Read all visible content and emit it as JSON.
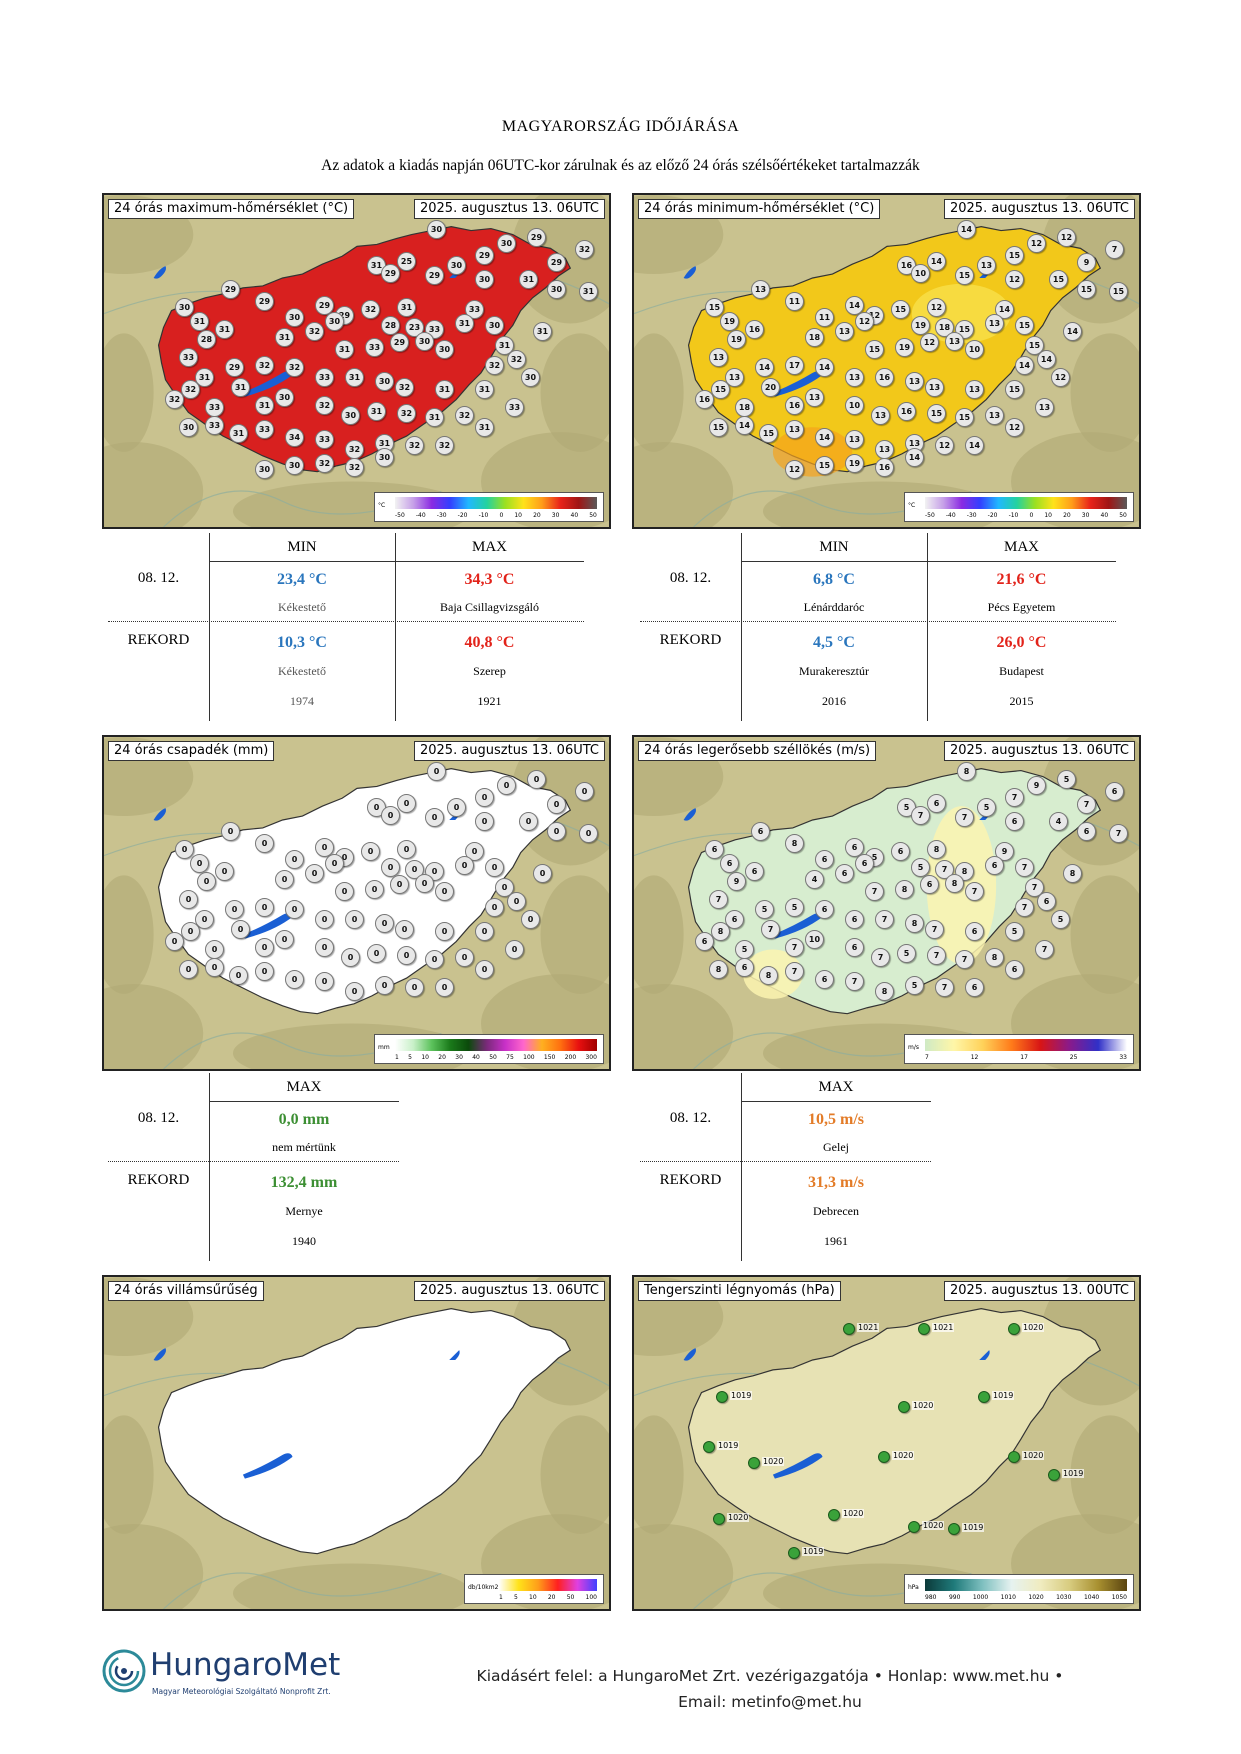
{
  "header": {
    "title": "MAGYARORSZÁG IDŐJÁRÁSA",
    "subtitle": "Az adatok a kiadás napján 06UTC-kor zárulnak és az előző 24 órás szélsőértékeket tartalmazzák"
  },
  "maps": [
    {
      "title": "24 órás maximum-hőmérséklet (°C)",
      "date": "2025. augusztus 13. 06UTC",
      "unit": "°C",
      "scale_ticks": [
        "-50",
        "-40",
        "-30",
        "-20",
        "-10",
        "0",
        "10",
        "20",
        "30",
        "40",
        "50"
      ]
    },
    {
      "title": "24 órás minimum-hőmérséklet (°C)",
      "date": "2025. augusztus 13. 06UTC",
      "unit": "°C",
      "scale_ticks": [
        "-50",
        "-40",
        "-30",
        "-20",
        "-10",
        "0",
        "10",
        "20",
        "30",
        "40",
        "50"
      ]
    },
    {
      "title": "24 órás csapadék (mm)",
      "date": "2025. augusztus 13. 06UTC",
      "unit": "mm",
      "scale_ticks": [
        "1",
        "5",
        "10",
        "20",
        "30",
        "40",
        "50",
        "75",
        "100",
        "150",
        "200",
        "300"
      ]
    },
    {
      "title": "24 órás legerősebb széllökés (m/s)",
      "date": "2025. augusztus 13. 06UTC",
      "unit": "m/s",
      "scale_ticks": [
        "7",
        "12",
        "17",
        "25",
        "33"
      ]
    },
    {
      "title": "24 órás villámsűrűség",
      "date": "2025. augusztus 13. 06UTC",
      "unit": "db/10km2",
      "scale_ticks": [
        "1",
        "5",
        "10",
        "20",
        "50",
        "100"
      ]
    },
    {
      "title": "Tengerszinti légnyomás (hPa)",
      "date": "2025. augusztus 13. 00UTC",
      "unit": "hPa",
      "scale_ticks": [
        "980",
        "990",
        "1000",
        "1010",
        "1020",
        "1030",
        "1040",
        "1050"
      ]
    }
  ],
  "station_values": {
    "tmax": [
      "30",
      "29",
      "30",
      "29",
      "29",
      "32",
      "31",
      "25",
      "30",
      "29",
      "29",
      "30",
      "31",
      "30",
      "31",
      "29",
      "29",
      "30",
      "29",
      "29",
      "32",
      "28",
      "31",
      "23",
      "33",
      "33",
      "31",
      "30",
      "31",
      "31",
      "30",
      "31",
      "28",
      "31",
      "31",
      "32",
      "30",
      "31",
      "33",
      "29",
      "30",
      "30",
      "32",
      "32",
      "30",
      "33",
      "31",
      "29",
      "32",
      "32",
      "33",
      "31",
      "30",
      "32",
      "31",
      "31",
      "33",
      "32",
      "32",
      "33",
      "31",
      "31",
      "30",
      "32",
      "30",
      "31",
      "32",
      "31",
      "32",
      "31",
      "30",
      "33",
      "31",
      "33",
      "34",
      "33",
      "32",
      "31",
      "32",
      "32",
      "30",
      "30",
      "32",
      "32",
      "30"
    ],
    "tmin": [
      "14",
      "15",
      "12",
      "12",
      "9",
      "7",
      "16",
      "14",
      "13",
      "15",
      "10",
      "12",
      "15",
      "15",
      "15",
      "13",
      "11",
      "11",
      "14",
      "12",
      "15",
      "19",
      "12",
      "18",
      "15",
      "14",
      "13",
      "15",
      "15",
      "14",
      "15",
      "19",
      "19",
      "16",
      "18",
      "13",
      "12",
      "15",
      "19",
      "12",
      "13",
      "10",
      "14",
      "14",
      "12",
      "13",
      "13",
      "14",
      "17",
      "14",
      "13",
      "16",
      "13",
      "13",
      "13",
      "15",
      "13",
      "16",
      "15",
      "18",
      "20",
      "16",
      "13",
      "10",
      "13",
      "16",
      "15",
      "15",
      "13",
      "12",
      "15",
      "14",
      "15",
      "13",
      "14",
      "13",
      "13",
      "13",
      "12",
      "14",
      "12",
      "15",
      "19",
      "16",
      "14"
    ],
    "rain": [
      "0",
      "0",
      "0",
      "0",
      "0",
      "0",
      "0",
      "0",
      "0",
      "0",
      "0",
      "0",
      "0",
      "0",
      "0",
      "0",
      "0",
      "0",
      "0",
      "0",
      "0",
      "0",
      "0",
      "0",
      "0",
      "0",
      "0",
      "0",
      "0",
      "0",
      "0",
      "0",
      "0",
      "0",
      "0",
      "0",
      "0",
      "0",
      "0",
      "0",
      "0",
      "0",
      "0",
      "0",
      "0",
      "0",
      "0",
      "0",
      "0",
      "0",
      "0",
      "0",
      "0",
      "0",
      "0",
      "0",
      "0",
      "0",
      "0",
      "0",
      "0",
      "0",
      "0",
      "0",
      "0",
      "0",
      "0",
      "0",
      "0",
      "0",
      "0",
      "0",
      "0",
      "0",
      "0",
      "0",
      "0",
      "0",
      "0",
      "0"
    ],
    "wind": [
      "8",
      "7",
      "9",
      "5",
      "7",
      "6",
      "5",
      "6",
      "5",
      "7",
      "7",
      "6",
      "4",
      "6",
      "7",
      "6",
      "8",
      "6",
      "6",
      "5",
      "6",
      "5",
      "8",
      "7",
      "8",
      "9",
      "6",
      "7",
      "7",
      "8",
      "6",
      "6",
      "9",
      "6",
      "4",
      "6",
      "6",
      "7",
      "8",
      "6",
      "8",
      "7",
      "7",
      "6",
      "5",
      "7",
      "6",
      "5",
      "5",
      "6",
      "6",
      "7",
      "8",
      "7",
      "6",
      "5",
      "7",
      "6",
      "8",
      "5",
      "7",
      "7",
      "10",
      "6",
      "7",
      "5",
      "7",
      "7",
      "8",
      "6",
      "8",
      "6",
      "8",
      "7",
      "6",
      "7",
      "8",
      "5",
      "7",
      "6"
    ],
    "pressure": [
      "1021",
      "1021",
      "1020",
      "1019",
      "1019",
      "1020",
      "1020",
      "1019",
      "1020",
      "1020",
      "1019",
      "1020",
      "1020",
      "1020",
      "1019",
      "1019"
    ]
  },
  "tmax_table": {
    "col_min": "MIN",
    "col_max": "MAX",
    "date_label": "08. 12.",
    "record_label": "REKORD",
    "day_min": "23,4 °C",
    "day_min_place": "Kékestető",
    "day_max": "34,3 °C",
    "day_max_place": "Baja Csillagvizsgáló",
    "rec_min": "10,3 °C",
    "rec_min_place": "Kékestető",
    "rec_min_year": "1974",
    "rec_max": "40,8 °C",
    "rec_max_place": "Szerep",
    "rec_max_year": "1921"
  },
  "tmin_table": {
    "col_min": "MIN",
    "col_max": "MAX",
    "date_label": "08. 12.",
    "record_label": "REKORD",
    "day_min": "6,8 °C",
    "day_min_place": "Lénárddaróc",
    "day_max": "21,6 °C",
    "day_max_place": "Pécs Egyetem",
    "rec_min": "4,5 °C",
    "rec_min_place": "Murakeresztúr",
    "rec_min_year": "2016",
    "rec_max": "26,0 °C",
    "rec_max_place": "Budapest",
    "rec_max_year": "2015"
  },
  "rain_table": {
    "col_max": "MAX",
    "date_label": "08. 12.",
    "record_label": "REKORD",
    "day_max": "0,0 mm",
    "day_max_place": "nem mértünk",
    "rec_max": "132,4 mm",
    "rec_max_place": "Mernye",
    "rec_max_year": "1940"
  },
  "wind_table": {
    "col_max": "MAX",
    "date_label": "08. 12.",
    "record_label": "REKORD",
    "day_max": "10,5 m/s",
    "day_max_place": "Gelej",
    "rec_max": "31,3 m/s",
    "rec_max_place": "Debrecen",
    "rec_max_year": "1961"
  },
  "footer": {
    "logo_name": "HungaroMet",
    "logo_sub": "Magyar Meteorológiai Szolgáltató Nonprofit Zrt.",
    "line1": "Kiadásért felel: a HungaroMet Zrt. vezérigazgatója • Honlap: www.met.hu •",
    "line2": "Email: metinfo@met.hu"
  },
  "colors": {
    "tmax_fill": "#d8201f",
    "tmin_fill": "#f2c81a",
    "rain_fill": "#ffffff",
    "wind_fill": "#d7edcf",
    "lightning_fill": "#ffffff",
    "pressure_fill": "#e7e2b4",
    "terrain": "#c9c28f",
    "lake": "#1a5fd4",
    "min_text": "#2a76bd",
    "max_text": "#e2231a",
    "rain_text": "#3c8f33",
    "wind_text": "#e37b27"
  }
}
